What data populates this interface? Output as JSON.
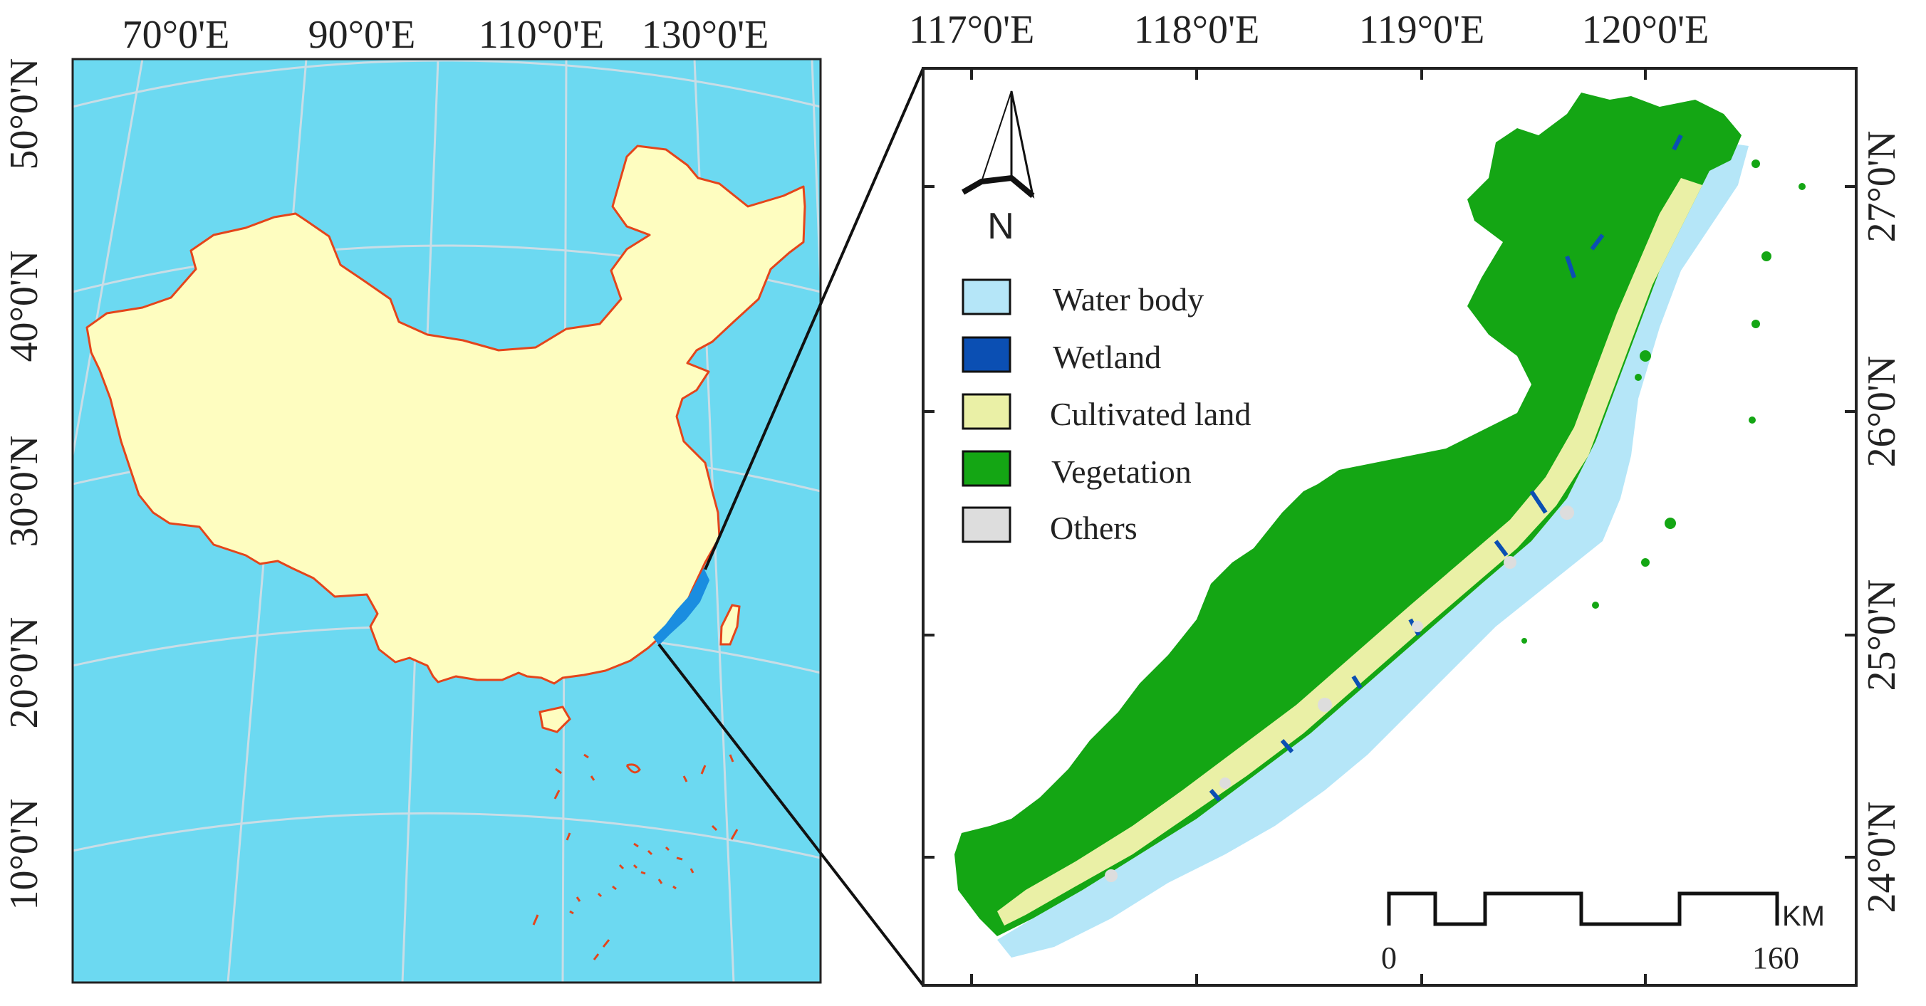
{
  "overview_map": {
    "top_labels": [
      "70°0'E",
      "90°0'E",
      "110°0'E",
      "130°0'E"
    ],
    "left_labels": [
      "50°0'N",
      "40°0'N",
      "30°0'N",
      "20°0'N",
      "10°0'N"
    ],
    "colors": {
      "ocean": "#6cd9f1",
      "land": "#fefdc0",
      "border": "#e4451b",
      "study_area": "#1a8de0",
      "graticule": "#c9dde6"
    }
  },
  "detail_map": {
    "top_labels": [
      "117°0'E",
      "118°0'E",
      "119°0'E",
      "120°0'E"
    ],
    "right_labels": [
      "27°0'N",
      "26°0'N",
      "25°0'N",
      "24°0'N"
    ],
    "north_arrow": {
      "icon": "north-arrow-icon",
      "label": "N"
    },
    "legend": [
      {
        "label": "Water body",
        "color": "#b5e6f8"
      },
      {
        "label": "Wetland",
        "color": "#0b4fb3"
      },
      {
        "label": "Cultivated land",
        "color": "#eaf0a6"
      },
      {
        "label": "Vegetation",
        "color": "#14a614"
      },
      {
        "label": "Others",
        "color": "#dddddd"
      }
    ],
    "scale_bar": {
      "start": "0",
      "end": "160",
      "unit": "KM"
    }
  }
}
